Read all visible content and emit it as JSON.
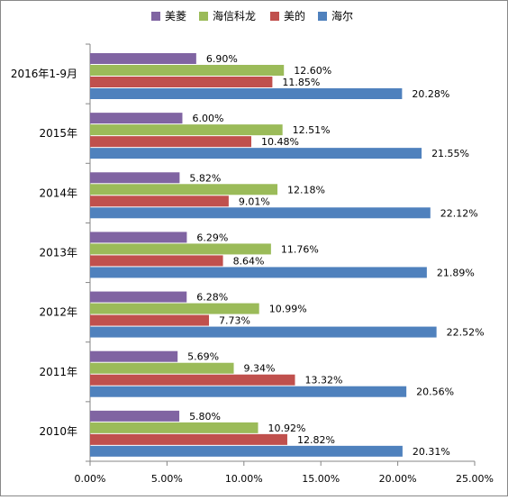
{
  "chart_data": {
    "type": "bar",
    "orientation": "horizontal",
    "title": "",
    "xlabel": "",
    "ylabel": "",
    "xlim": [
      0,
      25
    ],
    "x_ticks": [
      0,
      5,
      10,
      15,
      20,
      25
    ],
    "x_tick_labels": [
      "0.00%",
      "5.00%",
      "10.00%",
      "15.00%",
      "20.00%",
      "25.00%"
    ],
    "grid": false,
    "legend_position": "top",
    "categories": [
      "2016年1-9月",
      "2015年",
      "2014年",
      "2013年",
      "2012年",
      "2011年",
      "2010年"
    ],
    "series": [
      {
        "name": "美菱",
        "color": "#8064A2",
        "values": [
          6.9,
          6.0,
          5.82,
          6.29,
          6.28,
          5.69,
          5.8
        ],
        "labels": [
          "6.90%",
          "6.00%",
          "5.82%",
          "6.29%",
          "6.28%",
          "5.69%",
          "5.80%"
        ]
      },
      {
        "name": "海信科龙",
        "color": "#9BBB59",
        "values": [
          12.6,
          12.51,
          12.18,
          11.76,
          10.99,
          9.34,
          10.92
        ],
        "labels": [
          "12.60%",
          "12.51%",
          "12.18%",
          "11.76%",
          "10.99%",
          "9.34%",
          "10.92%"
        ]
      },
      {
        "name": "美的",
        "color": "#C0504D",
        "values": [
          11.85,
          10.48,
          9.01,
          8.64,
          7.73,
          13.32,
          12.82
        ],
        "labels": [
          "11.85%",
          "10.48%",
          "9.01%",
          "8.64%",
          "7.73%",
          "13.32%",
          "12.82%"
        ]
      },
      {
        "name": "海尔",
        "color": "#4F81BD",
        "values": [
          20.28,
          21.55,
          22.12,
          21.89,
          22.52,
          20.56,
          20.31
        ],
        "labels": [
          "20.28%",
          "21.55%",
          "22.12%",
          "21.89%",
          "22.52%",
          "20.56%",
          "20.31%"
        ]
      }
    ]
  }
}
